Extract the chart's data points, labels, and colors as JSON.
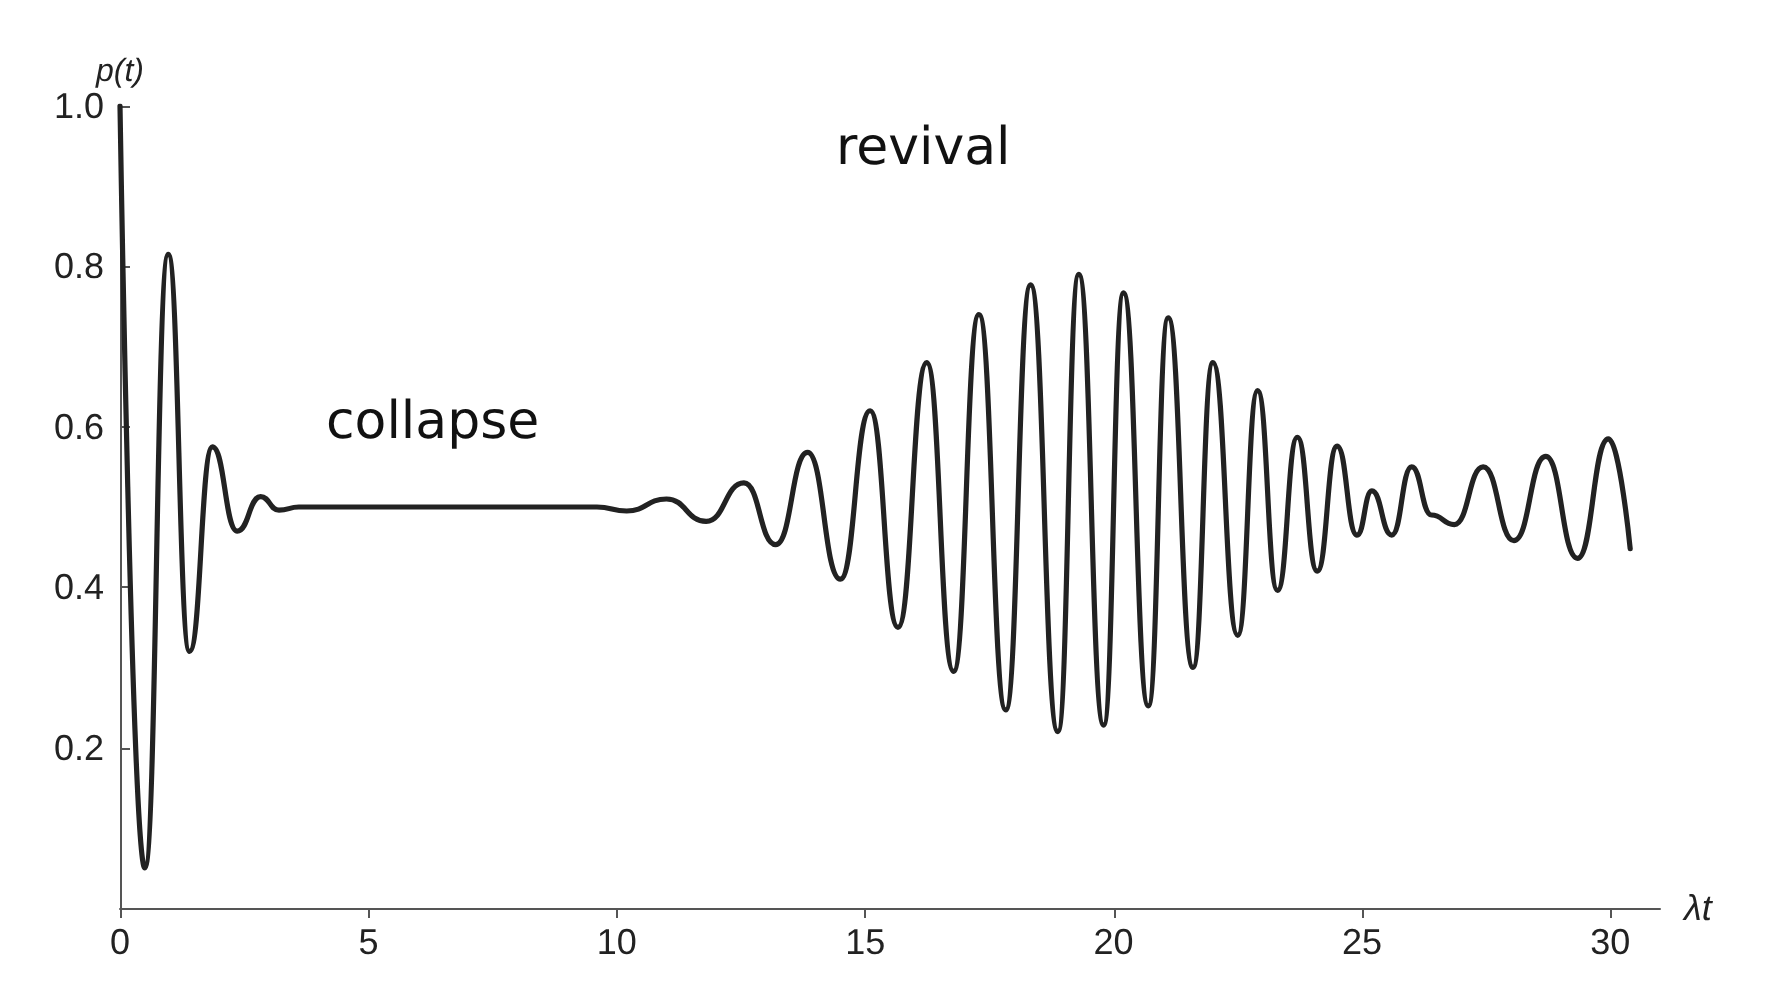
{
  "chart_data": {
    "type": "line",
    "xlabel": "λt",
    "ylabel": "p(t)",
    "x": [
      0,
      0.5,
      0.97,
      1.4,
      1.86,
      2.36,
      2.83,
      3.2,
      3.6,
      5,
      7,
      9.6,
      10.2,
      11.0,
      11.8,
      12.56,
      13.2,
      13.84,
      14.5,
      15.1,
      15.66,
      16.24,
      16.78,
      17.29,
      17.83,
      18.33,
      18.88,
      19.3,
      19.8,
      20.2,
      20.7,
      21.1,
      21.6,
      22.0,
      22.5,
      22.9,
      23.3,
      23.7,
      24.1,
      24.5,
      24.9,
      25.2,
      25.6,
      26.0,
      26.4,
      26.86,
      27.44,
      28.06,
      28.7,
      29.34,
      29.96,
      30.4
    ],
    "series": [
      {
        "color": "#222222",
        "values": [
          1.0,
          0.05,
          0.815,
          0.32,
          0.575,
          0.47,
          0.513,
          0.496,
          0.5,
          0.5,
          0.5,
          0.5,
          0.495,
          0.51,
          0.482,
          0.53,
          0.453,
          0.568,
          0.41,
          0.62,
          0.35,
          0.68,
          0.295,
          0.74,
          0.247,
          0.777,
          0.22,
          0.79,
          0.228,
          0.767,
          0.252,
          0.736,
          0.3,
          0.68,
          0.34,
          0.645,
          0.396,
          0.587,
          0.42,
          0.576,
          0.465,
          0.52,
          0.465,
          0.55,
          0.49,
          0.478,
          0.55,
          0.458,
          0.563,
          0.436,
          0.585,
          0.448
        ]
      }
    ],
    "xlim": [
      0,
      31
    ],
    "xticks": [
      0,
      5,
      10,
      15,
      20,
      25,
      30
    ],
    "ylim": [
      0,
      1
    ],
    "yticks": [
      {
        "value": 0.2,
        "label": "0.2"
      },
      {
        "value": 0.4,
        "label": "0.4"
      },
      {
        "value": 0.6,
        "label": "0.6"
      },
      {
        "value": 0.8,
        "label": "0.8"
      },
      {
        "value": 1,
        "label": "1.0"
      }
    ],
    "annotations": [
      "collapse",
      "revival"
    ],
    "grid": false,
    "marker": "none",
    "line_style": "solid"
  }
}
